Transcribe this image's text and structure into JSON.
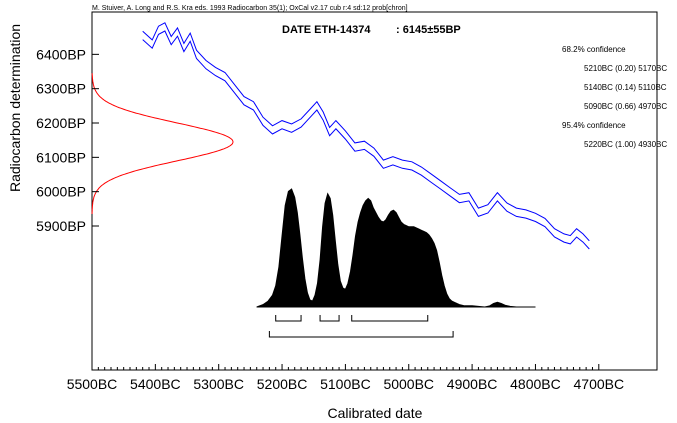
{
  "header_text": "M. Stuiver, A. Long and R.S. Kra eds. 1993 Radiocarbon 35(1);  OxCal v2.17 cub r:4 sd:12 prob[chron]",
  "colors": {
    "calibration_curve": "#0000ff",
    "radiocarbon_curve": "#ff0000",
    "probability_fill": "#000000"
  },
  "chart_data": {
    "type": "area",
    "xlabel": "Calibrated date",
    "ylabel": "Radiocarbon determination",
    "x_axis_reversed": true,
    "xlim": [
      5500,
      4700
    ],
    "ylim": [
      5760,
      6500
    ],
    "x_ticks": [
      5500,
      5400,
      5300,
      5200,
      5100,
      5000,
      4900,
      4800,
      4700
    ],
    "x_tick_labels": [
      "5500BC",
      "5400BC",
      "5300BC",
      "5200BC",
      "5100BC",
      "5000BC",
      "4900BC",
      "4800BC",
      "4700BC"
    ],
    "y_ticks": [
      5900,
      6000,
      6100,
      6200,
      6300,
      6400
    ],
    "y_tick_labels": [
      "5900BP",
      "6000BP",
      "6100BP",
      "6200BP",
      "6300BP",
      "6400BP"
    ],
    "sample": {
      "label": "DATE ETH-14374",
      "value_label": ": 6145±55BP",
      "mean_bp": 6145,
      "sigma_bp": 55
    },
    "confidence_text": [
      "68.2% confidence",
      "5210BC (0.20) 5170BC",
      "5140BC (0.14) 5110BC",
      "5090BC (0.66) 4970BC",
      "95.4% confidence",
      "5220BC (1.00) 4930BC"
    ],
    "ranges_68": [
      [
        5210,
        5170
      ],
      [
        5140,
        5110
      ],
      [
        5090,
        4970
      ]
    ],
    "ranges_95": [
      [
        5220,
        4930
      ]
    ],
    "calibration_curve": {
      "x": [
        5420,
        5405,
        5395,
        5385,
        5375,
        5365,
        5355,
        5345,
        5335,
        5320,
        5305,
        5290,
        5275,
        5260,
        5245,
        5230,
        5215,
        5200,
        5185,
        5170,
        5155,
        5145,
        5135,
        5125,
        5115,
        5100,
        5085,
        5070,
        5055,
        5040,
        5025,
        5010,
        4995,
        4980,
        4965,
        4950,
        4935,
        4920,
        4905,
        4890,
        4875,
        4860,
        4845,
        4830,
        4815,
        4800,
        4785,
        4770,
        4755,
        4745,
        4735,
        4725,
        4715
      ],
      "y": [
        6455,
        6430,
        6470,
        6480,
        6440,
        6465,
        6420,
        6450,
        6400,
        6370,
        6350,
        6335,
        6300,
        6265,
        6250,
        6205,
        6180,
        6195,
        6185,
        6200,
        6230,
        6250,
        6220,
        6175,
        6195,
        6165,
        6130,
        6135,
        6115,
        6080,
        6090,
        6080,
        6075,
        6060,
        6040,
        6020,
        6000,
        5980,
        5985,
        5940,
        5950,
        5985,
        5955,
        5940,
        5935,
        5925,
        5910,
        5880,
        5865,
        5860,
        5880,
        5865,
        5845
      ],
      "band_bp": 12
    },
    "probability_density": {
      "x": [
        5240,
        5230,
        5222,
        5215,
        5210,
        5205,
        5200,
        5195,
        5190,
        5185,
        5180,
        5176,
        5172,
        5168,
        5164,
        5160,
        5156,
        5152,
        5148,
        5144,
        5140,
        5136,
        5132,
        5128,
        5124,
        5120,
        5116,
        5112,
        5108,
        5104,
        5100,
        5096,
        5092,
        5088,
        5084,
        5080,
        5076,
        5072,
        5068,
        5064,
        5060,
        5056,
        5052,
        5048,
        5044,
        5040,
        5036,
        5032,
        5028,
        5024,
        5020,
        5016,
        5012,
        5008,
        5004,
        5000,
        4996,
        4992,
        4988,
        4984,
        4980,
        4976,
        4972,
        4968,
        4964,
        4960,
        4956,
        4952,
        4948,
        4944,
        4940,
        4936,
        4932,
        4928,
        4924,
        4920,
        4916,
        4912,
        4900,
        4890,
        4880,
        4872,
        4866,
        4860,
        4854,
        4848,
        4840,
        4830,
        4800
      ],
      "p": [
        0.0,
        0.02,
        0.05,
        0.1,
        0.18,
        0.34,
        0.6,
        0.86,
        0.98,
        1.0,
        0.93,
        0.8,
        0.62,
        0.42,
        0.24,
        0.12,
        0.06,
        0.05,
        0.1,
        0.2,
        0.4,
        0.68,
        0.88,
        0.96,
        0.92,
        0.78,
        0.56,
        0.36,
        0.22,
        0.16,
        0.15,
        0.2,
        0.3,
        0.44,
        0.6,
        0.72,
        0.8,
        0.86,
        0.9,
        0.92,
        0.9,
        0.84,
        0.8,
        0.76,
        0.73,
        0.72,
        0.74,
        0.78,
        0.81,
        0.82,
        0.8,
        0.76,
        0.72,
        0.7,
        0.69,
        0.68,
        0.68,
        0.68,
        0.67,
        0.66,
        0.65,
        0.64,
        0.63,
        0.61,
        0.58,
        0.54,
        0.48,
        0.38,
        0.27,
        0.18,
        0.11,
        0.07,
        0.05,
        0.04,
        0.03,
        0.02,
        0.015,
        0.01,
        0.01,
        0.005,
        0.0,
        0.01,
        0.03,
        0.04,
        0.03,
        0.015,
        0.005,
        0.0,
        0.0
      ]
    }
  }
}
